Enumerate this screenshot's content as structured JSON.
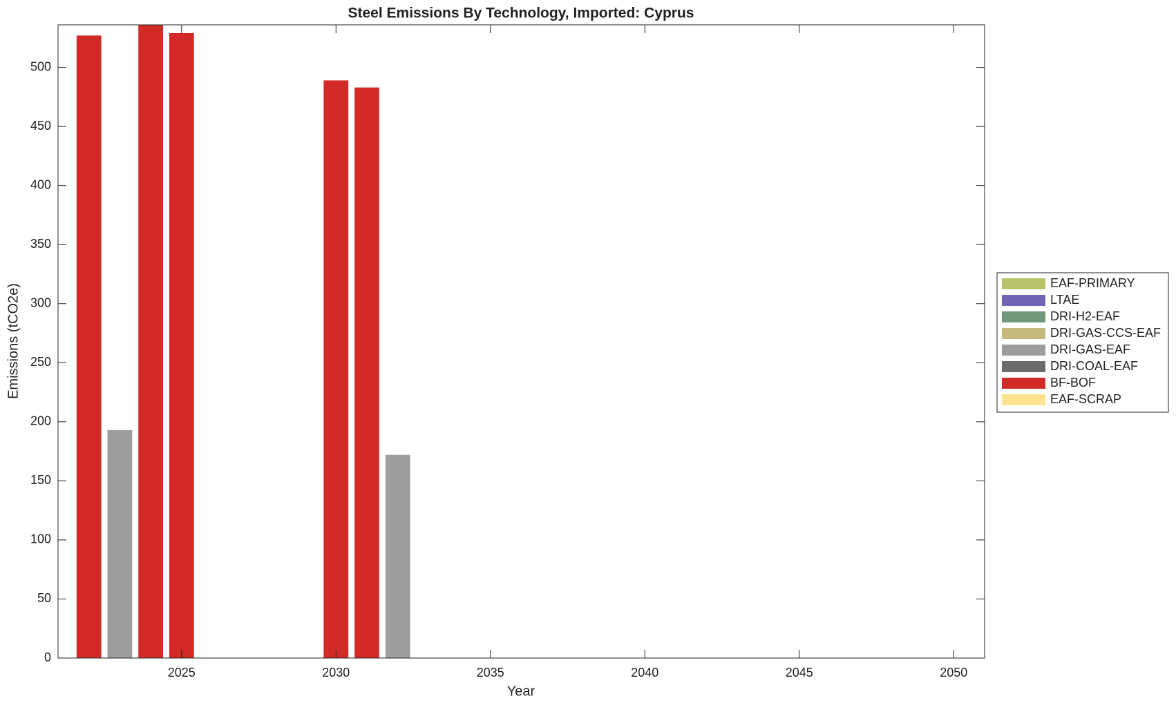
{
  "chart_data": {
    "type": "stacked_bar",
    "title": "Steel Emissions By Technology, Imported: Cyprus",
    "x_label": "Year",
    "y_label": "Emissions (tCO2e)",
    "x": [
      2022,
      2023,
      2024,
      2025,
      2026,
      2027,
      2028,
      2029,
      2030,
      2031,
      2032
    ],
    "series": [
      {
        "name": "EAF-PRIMARY",
        "color": "#b8c36a",
        "values": [
          0,
          0,
          0,
          0,
          0,
          0,
          0,
          0,
          0,
          0,
          0
        ]
      },
      {
        "name": "LTAE",
        "color": "#7065b5",
        "values": [
          0,
          0,
          0,
          0,
          0,
          0,
          0,
          0,
          0,
          0,
          0
        ]
      },
      {
        "name": "DRI-H2-EAF",
        "color": "#73977a",
        "values": [
          0,
          0,
          0,
          0,
          0,
          0,
          0,
          0,
          0,
          0,
          0
        ]
      },
      {
        "name": "DRI-GAS-CCS-EAF",
        "color": "#c4b87a",
        "values": [
          0,
          0,
          0,
          0,
          0,
          0,
          0,
          0,
          0,
          0,
          0
        ]
      },
      {
        "name": "DRI-GAS-EAF",
        "color": "#9d9d9d",
        "values": [
          0,
          193,
          0,
          0,
          0,
          0,
          0,
          0,
          0,
          0,
          172
        ]
      },
      {
        "name": "DRI-COAL-EAF",
        "color": "#6b6b6b",
        "values": [
          0,
          0,
          0,
          0,
          0,
          0,
          0,
          0,
          0,
          0,
          0
        ]
      },
      {
        "name": "BF-BOF",
        "color": "#d22b27",
        "values": [
          527,
          0,
          536,
          529,
          0,
          0,
          0,
          0,
          489,
          483,
          0
        ]
      },
      {
        "name": "EAF-SCRAP",
        "color": "#fde28f",
        "values": [
          0,
          0,
          0,
          0,
          0,
          0,
          0,
          0,
          0,
          0,
          0
        ]
      }
    ],
    "xlim": [
      2021,
      2051
    ],
    "xticks": [
      2025,
      2030,
      2035,
      2040,
      2045,
      2050
    ],
    "ylim": [
      0,
      536
    ],
    "yticks": [
      0,
      50,
      100,
      150,
      200,
      250,
      300,
      350,
      400,
      450,
      500
    ],
    "legend": "right"
  }
}
